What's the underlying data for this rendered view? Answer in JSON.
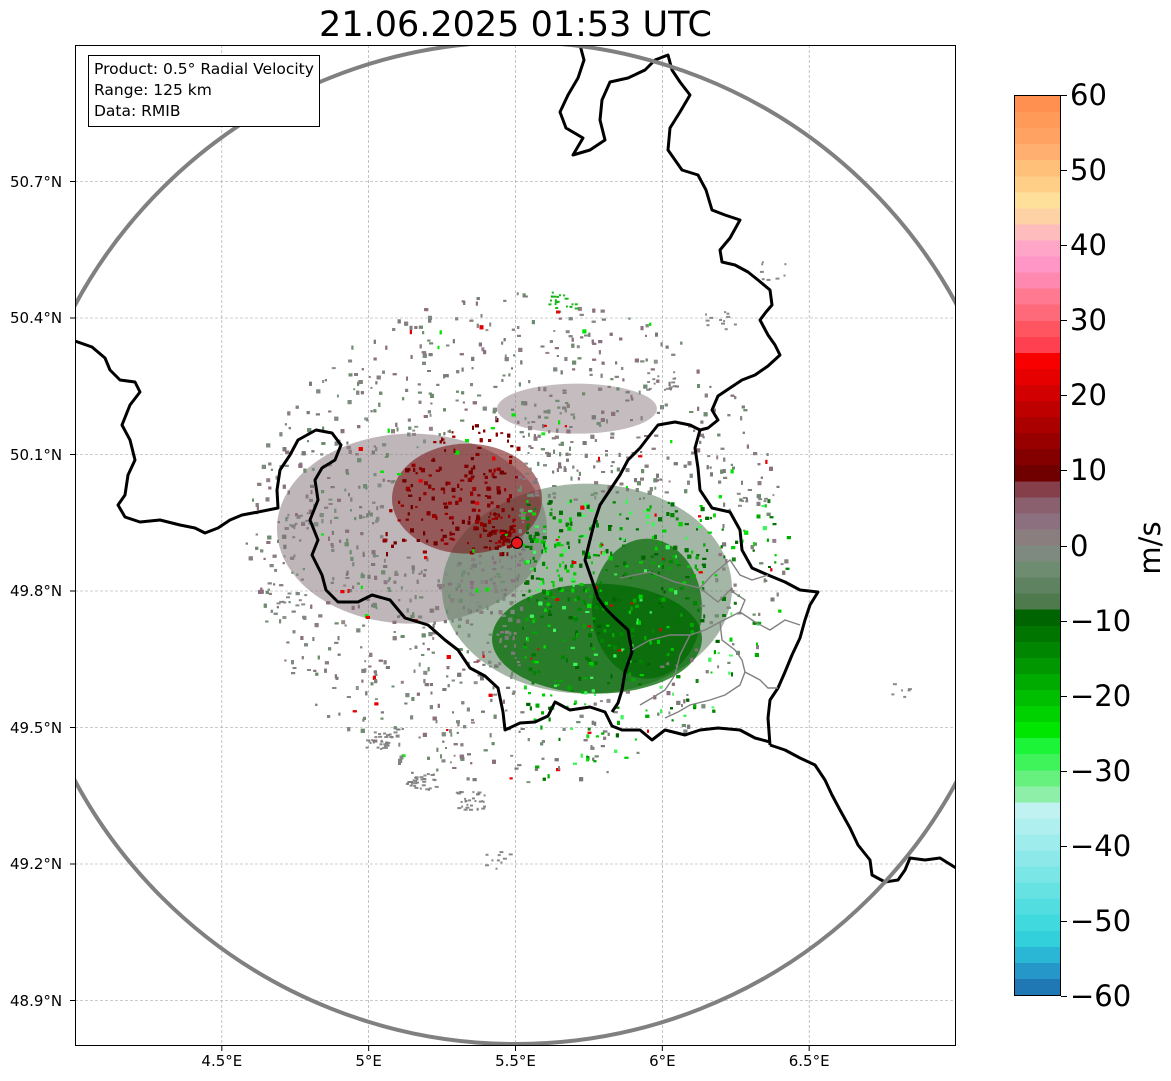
{
  "title": "21.06.2025 01:53 UTC",
  "info": {
    "product": "Product: 0.5° Radial Velocity",
    "range": "Range: 125 km",
    "data": "Data: RMIB"
  },
  "axes": {
    "lat_ticks": [
      "50.7°N",
      "50.4°N",
      "50.1°N",
      "49.8°N",
      "49.5°N",
      "49.2°N",
      "48.9°N"
    ],
    "lon_ticks": [
      "4.5°E",
      "5°E",
      "5.5°E",
      "6°E",
      "6.5°E"
    ],
    "lon_range": [
      4.0,
      7.0
    ],
    "lat_range": [
      48.8,
      51.0
    ],
    "grid": true
  },
  "radar": {
    "site_lon": 5.505,
    "site_lat": 49.915,
    "range_km": 125,
    "marker_color": "#e8191c"
  },
  "colorbar": {
    "unit": "m/s",
    "min": -60,
    "max": 60,
    "tick_values": [
      60,
      50,
      40,
      30,
      20,
      10,
      0,
      -10,
      -20,
      -30,
      -40,
      -50,
      -60
    ],
    "tick_labels": [
      "60",
      "50",
      "40",
      "30",
      "20",
      "10",
      "0",
      "−10",
      "−20",
      "−30",
      "−40",
      "−50",
      "−60"
    ],
    "colors_bottom_to_top": [
      "#1f77b4",
      "#2597c8",
      "#2ab7d5",
      "#31d0db",
      "#3fd9de",
      "#52dee0",
      "#66e2e3",
      "#7ae6e6",
      "#8de9e9",
      "#9eecec",
      "#b0efef",
      "#c0f2f2",
      "#8ef0a8",
      "#66f07e",
      "#3ff45a",
      "#1cf437",
      "#00e600",
      "#00d200",
      "#00bf00",
      "#00ab00",
      "#009700",
      "#008600",
      "#007500",
      "#006400",
      "#4e7a4e",
      "#5f8260",
      "#6e8c70",
      "#7e8a80",
      "#8a7e7e",
      "#8c7080",
      "#8a5f6e",
      "#843f4a",
      "#700000",
      "#840000",
      "#980000",
      "#ab0000",
      "#bf0000",
      "#d20000",
      "#e60000",
      "#f80000",
      "#ff4050",
      "#ff5560",
      "#ff6a7a",
      "#ff7a90",
      "#ff88b0",
      "#ff96c6",
      "#ffa6c8",
      "#ffbcbc",
      "#ffd2a6",
      "#ffe09a",
      "#ffcf88",
      "#ffc07a",
      "#ffb070",
      "#ffa262",
      "#ff9a58",
      "#ff9050"
    ]
  },
  "map_colors": {
    "inbound_green": "#006400",
    "outbound_red": "#7a0000",
    "neutral_gray": "#7c8480",
    "border": "#000000",
    "province_border": "#808080",
    "range_ring": "#808080"
  }
}
